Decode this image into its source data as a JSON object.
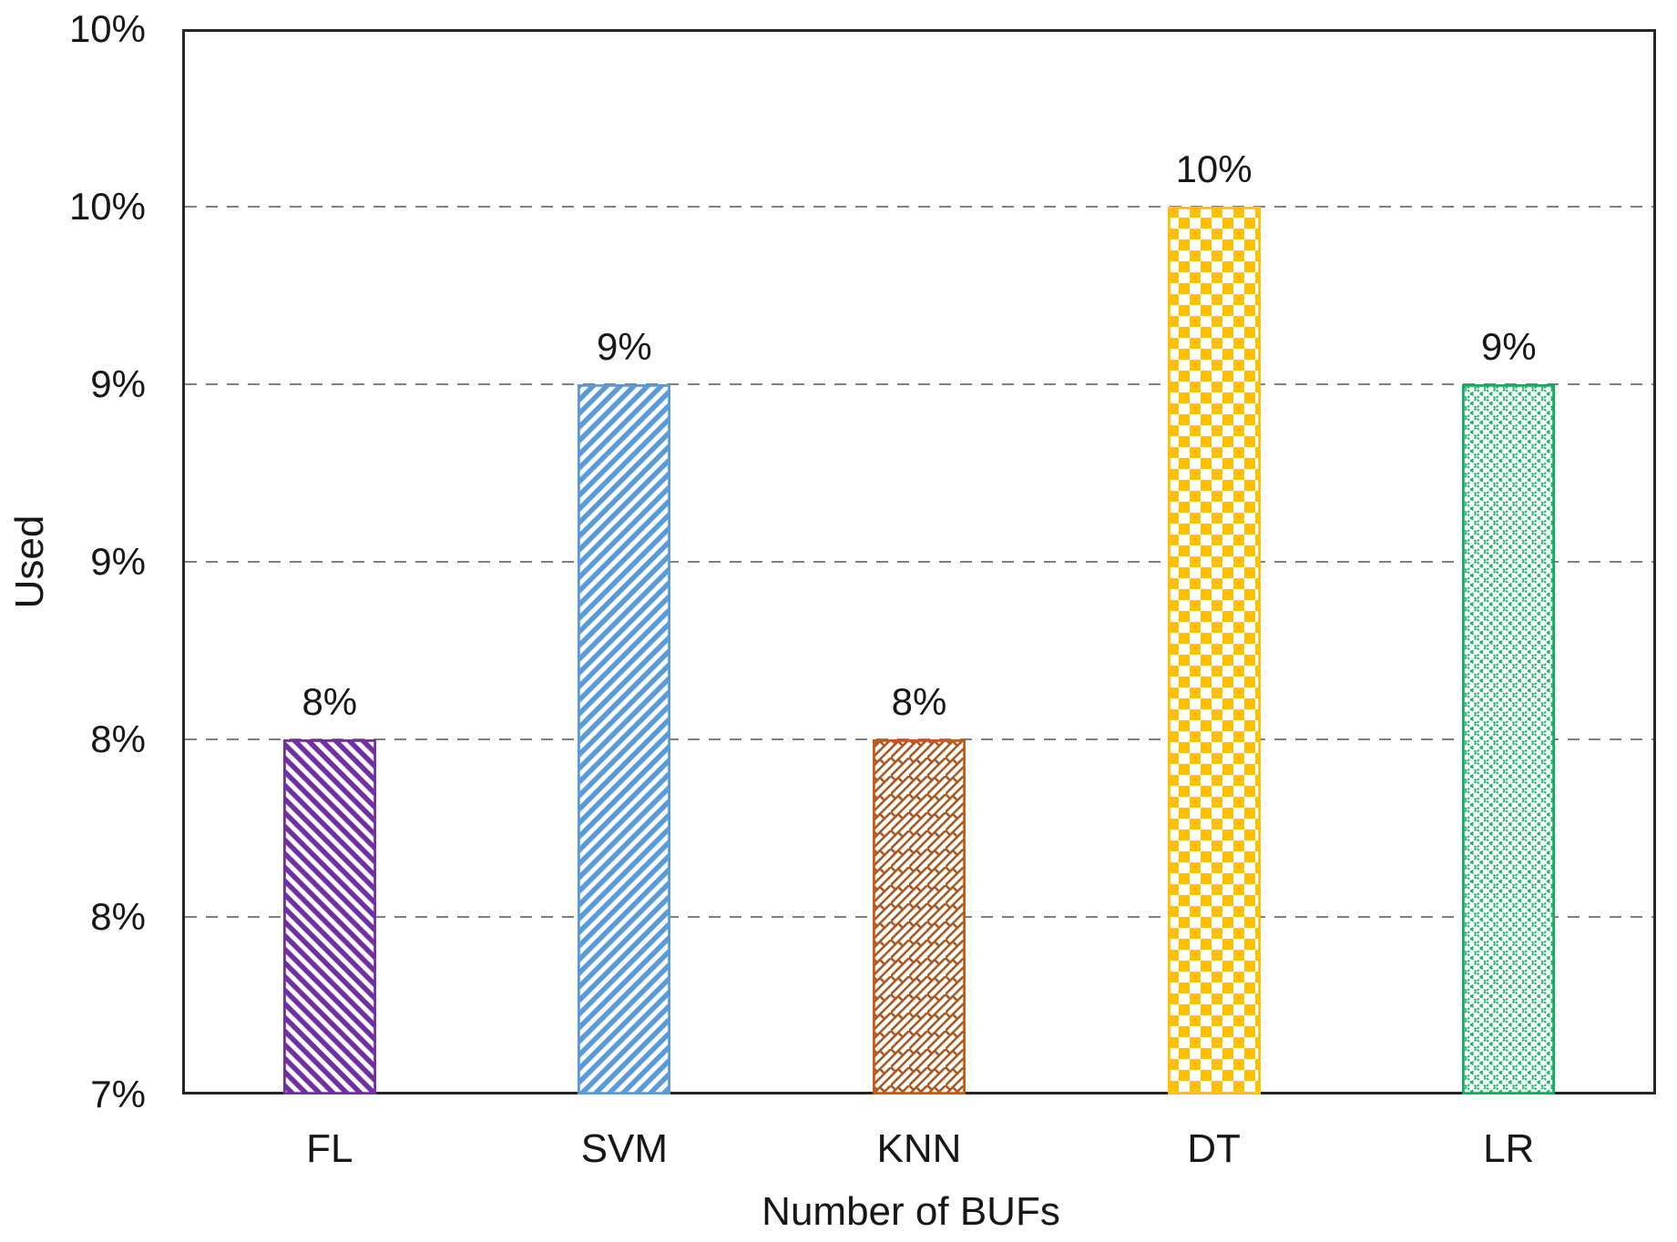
{
  "chart_data": {
    "type": "bar",
    "title": "",
    "xlabel": "Number of BUFs",
    "ylabel": "Used",
    "categories": [
      "FL",
      "SVM",
      "KNN",
      "DT",
      "LR"
    ],
    "values": [
      8,
      9,
      8,
      9.5,
      9
    ],
    "bar_labels": [
      "8%",
      "9%",
      "8%",
      "10%",
      "9%"
    ],
    "ylim": [
      7,
      10
    ],
    "yticks": [
      {
        "value": 7,
        "label": "7%"
      },
      {
        "value": 7.5,
        "label": "8%"
      },
      {
        "value": 8,
        "label": "8%"
      },
      {
        "value": 8.5,
        "label": "9%"
      },
      {
        "value": 9,
        "label": "9%"
      },
      {
        "value": 9.5,
        "label": "10%"
      },
      {
        "value": 10,
        "label": "10%"
      }
    ],
    "grid": {
      "horizontal": true,
      "style": "dashed",
      "color": "#808080"
    },
    "legend": "none",
    "series": [
      {
        "name": "FL",
        "value": 8,
        "label": "8%",
        "color": "#7030A0",
        "border_color": "#7030A0",
        "pattern": "diagonal-stripes-down"
      },
      {
        "name": "SVM",
        "value": 9,
        "label": "9%",
        "color": "#5B9BD5",
        "border_color": "#5B9BD5",
        "pattern": "diagonal-stripes-up"
      },
      {
        "name": "KNN",
        "value": 8,
        "label": "8%",
        "color": "#A85A24",
        "border_color": "#C55A11",
        "pattern": "diagonal-brick"
      },
      {
        "name": "DT",
        "value": 9.5,
        "label": "10%",
        "color": "#FFC000",
        "border_color": "#FFC000",
        "pattern": "checkerboard"
      },
      {
        "name": "LR",
        "value": 9,
        "label": "9%",
        "color": "#1DB567",
        "border_color": "#0FAD5C",
        "pattern": "diamond-lattice"
      }
    ],
    "axis_color": "#262626",
    "text_color": "#171717"
  }
}
